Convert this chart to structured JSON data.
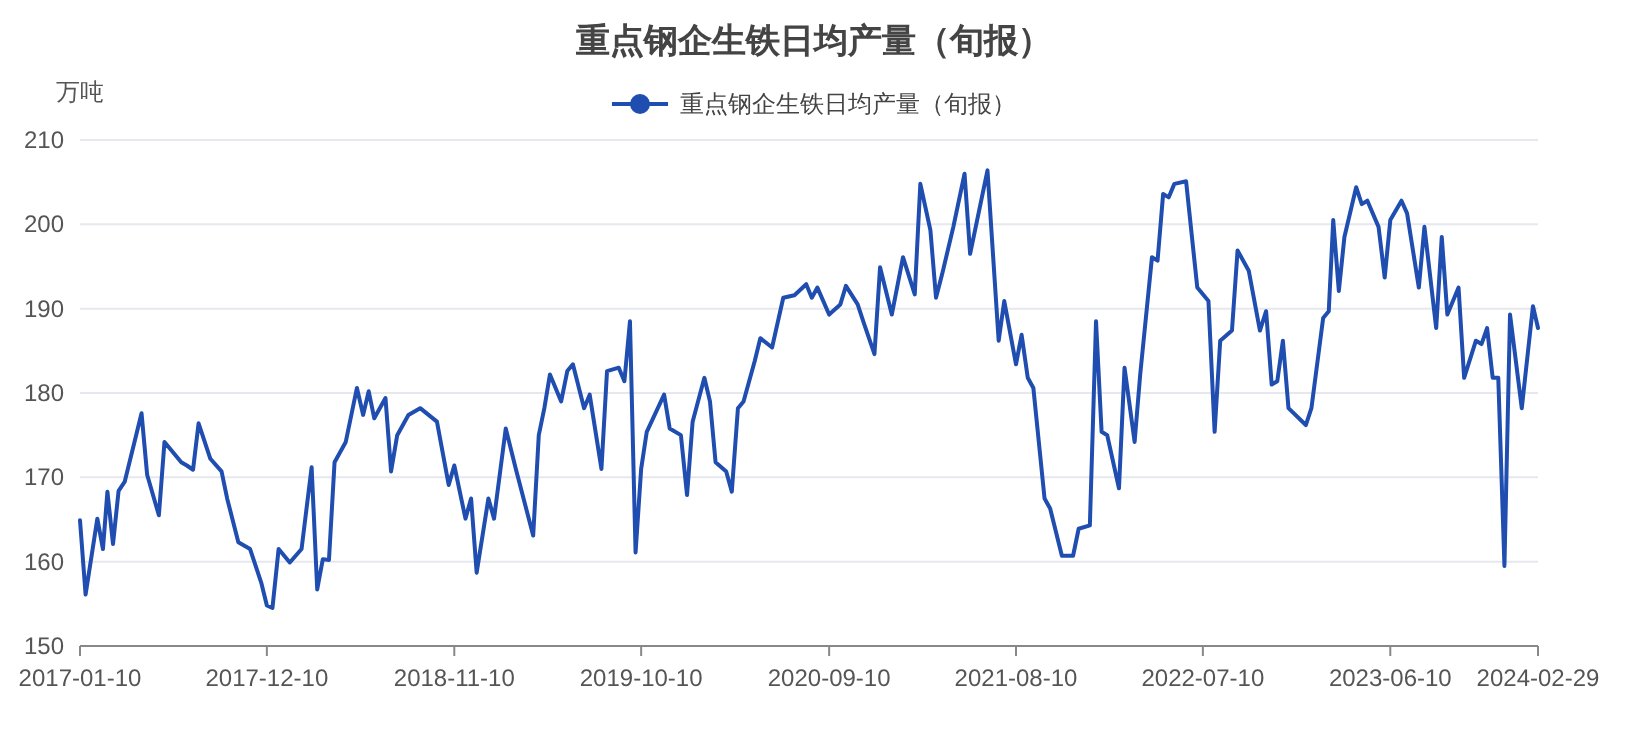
{
  "chart_data": {
    "type": "line",
    "title": "重点钢企生铁日均产量（旬报）",
    "ylabel": "万吨",
    "xlim": [
      "2017-01-10",
      "2024-02-29"
    ],
    "xticks": [
      "2017-01-10",
      "2017-12-10",
      "2018-11-10",
      "2019-10-10",
      "2020-09-10",
      "2021-08-10",
      "2022-07-10",
      "2023-06-10",
      "2024-02-29"
    ],
    "ylim": [
      150,
      210
    ],
    "yticks": [
      150,
      160,
      170,
      180,
      190,
      200,
      210
    ],
    "grid": "y",
    "legend": "top",
    "series": [
      {
        "name": "重点钢企生铁日均产量（旬报）",
        "color": "#1f4db0",
        "x": [
          "2017-01-10",
          "2017-01-20",
          "2017-02-10",
          "2017-02-20",
          "2017-02-28",
          "2017-03-10",
          "2017-03-20",
          "2017-03-31",
          "2017-04-30",
          "2017-05-10",
          "2017-05-31",
          "2017-06-10",
          "2017-07-10",
          "2017-07-20",
          "2017-07-31",
          "2017-08-10",
          "2017-08-31",
          "2017-09-20",
          "2017-09-30",
          "2017-10-20",
          "2017-11-10",
          "2017-11-30",
          "2017-12-10",
          "2017-12-20",
          "2017-12-31",
          "2018-01-20",
          "2018-02-10",
          "2018-02-28",
          "2018-03-10",
          "2018-03-20",
          "2018-03-31",
          "2018-04-10",
          "2018-04-30",
          "2018-05-20",
          "2018-05-31",
          "2018-06-10",
          "2018-06-20",
          "2018-07-10",
          "2018-07-20",
          "2018-07-31",
          "2018-08-20",
          "2018-09-10",
          "2018-10-10",
          "2018-10-31",
          "2018-11-10",
          "2018-11-30",
          "2018-12-10",
          "2018-12-20",
          "2019-01-10",
          "2019-01-20",
          "2019-02-10",
          "2019-02-28",
          "2019-03-31",
          "2019-04-10",
          "2019-04-20",
          "2019-04-30",
          "2019-05-20",
          "2019-05-31",
          "2019-06-10",
          "2019-06-30",
          "2019-07-10",
          "2019-07-31",
          "2019-08-10",
          "2019-08-31",
          "2019-09-10",
          "2019-09-20",
          "2019-09-30",
          "2019-10-10",
          "2019-10-20",
          "2019-11-20",
          "2019-11-30",
          "2019-12-20",
          "2019-12-31",
          "2020-01-10",
          "2020-01-31",
          "2020-02-10",
          "2020-02-20",
          "2020-03-10",
          "2020-03-20",
          "2020-03-31",
          "2020-04-10",
          "2020-04-30",
          "2020-05-10",
          "2020-05-31",
          "2020-06-20",
          "2020-07-10",
          "2020-07-31",
          "2020-08-10",
          "2020-08-20",
          "2020-09-10",
          "2020-09-30",
          "2020-10-10",
          "2020-10-31",
          "2020-11-10",
          "2020-11-30",
          "2020-12-10",
          "2020-12-31",
          "2021-01-20",
          "2021-02-10",
          "2021-02-20",
          "2021-03-10",
          "2021-03-20",
          "2021-03-31",
          "2021-04-20",
          "2021-05-10",
          "2021-05-20",
          "2021-06-20",
          "2021-07-10",
          "2021-07-20",
          "2021-08-10",
          "2021-08-20",
          "2021-08-31",
          "2021-09-10",
          "2021-09-30",
          "2021-10-10",
          "2021-10-31",
          "2021-11-20",
          "2021-11-30",
          "2021-12-20",
          "2021-12-31",
          "2022-01-10",
          "2022-01-20",
          "2022-02-10",
          "2022-02-20",
          "2022-03-10",
          "2022-03-20",
          "2022-04-10",
          "2022-04-20",
          "2022-04-30",
          "2022-05-10",
          "2022-05-20",
          "2022-06-10",
          "2022-06-30",
          "2022-07-20",
          "2022-07-31",
          "2022-08-10",
          "2022-08-31",
          "2022-09-10",
          "2022-09-30",
          "2022-10-20",
          "2022-10-31",
          "2022-11-10",
          "2022-11-20",
          "2022-11-30",
          "2022-12-10",
          "2023-01-10",
          "2023-01-20",
          "2023-02-10",
          "2023-02-20",
          "2023-02-28",
          "2023-03-10",
          "2023-03-20",
          "2023-04-10",
          "2023-04-20",
          "2023-04-30",
          "2023-05-20",
          "2023-05-31",
          "2023-06-10",
          "2023-06-30",
          "2023-07-10",
          "2023-07-31",
          "2023-08-10",
          "2023-08-31",
          "2023-09-10",
          "2023-09-20",
          "2023-10-10",
          "2023-10-20",
          "2023-11-10",
          "2023-11-20",
          "2023-11-30",
          "2023-12-10",
          "2023-12-20",
          "2023-12-31",
          "2024-01-10",
          "2024-01-31",
          "2024-02-20",
          "2024-02-29"
        ],
        "values": [
          164.9,
          156.1,
          165.1,
          161.5,
          168.3,
          162.1,
          168.4,
          169.5,
          177.6,
          170.3,
          165.5,
          174.2,
          171.8,
          171.4,
          170.9,
          176.4,
          172.2,
          170.7,
          167.5,
          162.3,
          161.5,
          157.5,
          154.8,
          154.5,
          161.5,
          159.9,
          161.5,
          171.2,
          156.7,
          160.3,
          160.2,
          171.8,
          174.2,
          180.6,
          177.4,
          180.2,
          177.0,
          179.4,
          170.7,
          175.0,
          177.4,
          178.2,
          176.6,
          169.1,
          171.4,
          165.1,
          167.5,
          158.7,
          167.5,
          165.1,
          175.8,
          171.0,
          163.1,
          175.0,
          178.2,
          182.2,
          179.0,
          182.6,
          183.4,
          178.2,
          179.8,
          171.0,
          182.6,
          183.0,
          181.4,
          188.5,
          161.1,
          171.0,
          175.4,
          179.8,
          175.8,
          175.0,
          167.9,
          176.6,
          181.8,
          179.0,
          171.8,
          170.7,
          168.3,
          178.2,
          179.0,
          183.8,
          186.5,
          185.4,
          191.3,
          191.6,
          192.9,
          191.3,
          192.5,
          189.3,
          190.5,
          192.7,
          190.5,
          188.5,
          184.6,
          194.9,
          189.3,
          196.1,
          191.7,
          204.8,
          199.3,
          191.3,
          194.1,
          199.7,
          206.0,
          196.5,
          206.4,
          186.2,
          190.9,
          183.4,
          186.9,
          181.8,
          180.6,
          167.5,
          166.3,
          160.7,
          160.7,
          163.9,
          164.3,
          188.5,
          175.4,
          175.0,
          168.7,
          183.0,
          174.2,
          182.2,
          196.1,
          195.7,
          203.6,
          203.2,
          204.8,
          205.1,
          192.5,
          190.9,
          175.4,
          186.2,
          187.4,
          196.9,
          194.5,
          187.4,
          189.7,
          181.0,
          181.4,
          186.2,
          178.2,
          176.2,
          178.2,
          188.9,
          189.7,
          200.5,
          192.1,
          198.5,
          204.4,
          202.4,
          202.8,
          199.7,
          193.7,
          200.5,
          202.8,
          201.3,
          192.5,
          199.7,
          187.7,
          198.5,
          189.3,
          192.5,
          181.8,
          186.2,
          185.8,
          187.7,
          181.8,
          181.8,
          159.5,
          189.3,
          178.2,
          190.3,
          187.7
        ]
      }
    ]
  }
}
